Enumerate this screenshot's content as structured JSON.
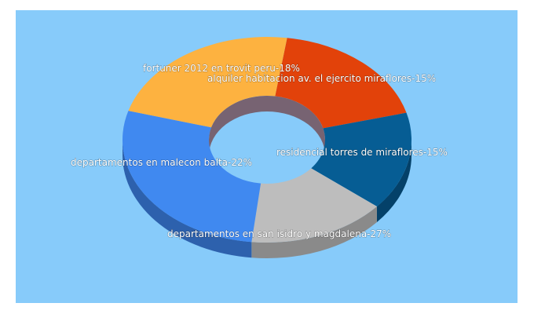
{
  "chart_data": {
    "type": "pie",
    "style": "3d-donut",
    "unit": "%",
    "slices": [
      {
        "label": "fortuner 2012 en trovit peru",
        "value": 18,
        "color": "#e2420a",
        "side_color": "#a22e06"
      },
      {
        "label": "alquiler habitacion av. el ejercito miraflores",
        "value": 15,
        "color": "#065d94",
        "side_color": "#044169"
      },
      {
        "label": "residencial torres de miraflores",
        "value": 15,
        "color": "#bdbdbd",
        "side_color": "#8a8a8a"
      },
      {
        "label": "departamentos en san isidro y magdalena",
        "value": 27,
        "color": "#4089f0",
        "side_color": "#2d61ad"
      },
      {
        "label": "departamentos en malecon balta",
        "value": 22,
        "color": "#fdb240",
        "side_color": "#c07f1c"
      }
    ],
    "legend": "none",
    "background": "#87cbfa"
  },
  "labels": {
    "fortuner": "fortuner 2012 en trovit peru-18%",
    "alquiler": "alquiler habitacion av. el ejercito miraflores-15%",
    "residencial": "residencial torres de miraflores-15%",
    "san_isidro": "departamentos en san isidro y magdalena-27%",
    "malecon": "departamentos en malecon balta-22%"
  }
}
